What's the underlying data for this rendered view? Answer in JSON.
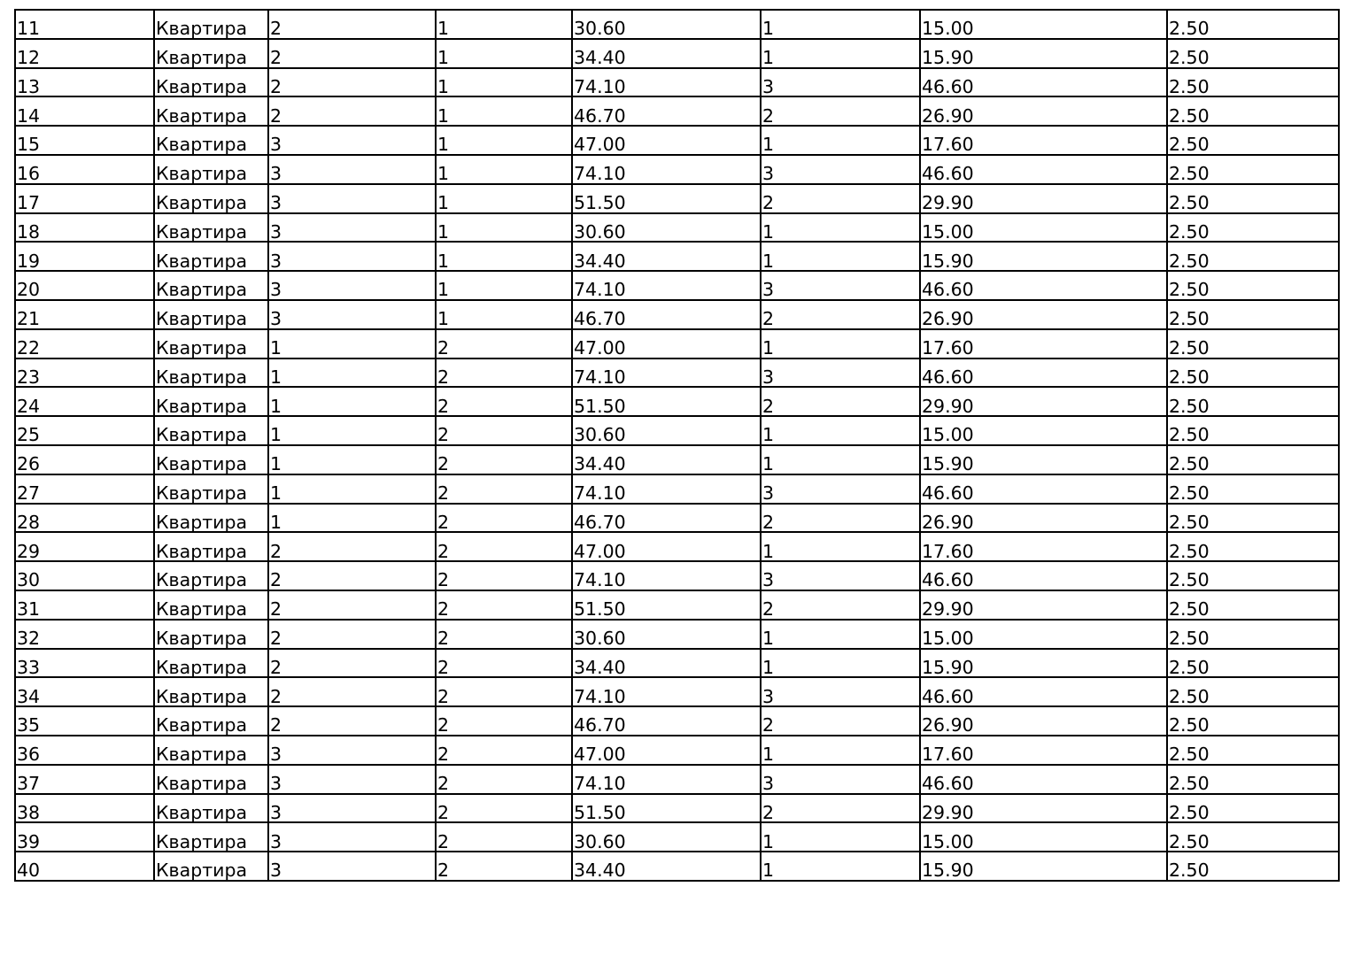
{
  "table": {
    "rows": [
      [
        "11",
        "Квартира",
        "2",
        "1",
        "30.60",
        "1",
        "15.00",
        "2.50"
      ],
      [
        "12",
        "Квартира",
        "2",
        "1",
        "34.40",
        "1",
        "15.90",
        "2.50"
      ],
      [
        "13",
        "Квартира",
        "2",
        "1",
        "74.10",
        "3",
        "46.60",
        "2.50"
      ],
      [
        "14",
        "Квартира",
        "2",
        "1",
        "46.70",
        "2",
        "26.90",
        "2.50"
      ],
      [
        "15",
        "Квартира",
        "3",
        "1",
        "47.00",
        "1",
        "17.60",
        "2.50"
      ],
      [
        "16",
        "Квартира",
        "3",
        "1",
        "74.10",
        "3",
        "46.60",
        "2.50"
      ],
      [
        "17",
        "Квартира",
        "3",
        "1",
        "51.50",
        "2",
        "29.90",
        "2.50"
      ],
      [
        "18",
        "Квартира",
        "3",
        "1",
        "30.60",
        "1",
        "15.00",
        "2.50"
      ],
      [
        "19",
        "Квартира",
        "3",
        "1",
        "34.40",
        "1",
        "15.90",
        "2.50"
      ],
      [
        "20",
        "Квартира",
        "3",
        "1",
        "74.10",
        "3",
        "46.60",
        "2.50"
      ],
      [
        "21",
        "Квартира",
        "3",
        "1",
        "46.70",
        "2",
        "26.90",
        "2.50"
      ],
      [
        "22",
        "Квартира",
        "1",
        "2",
        "47.00",
        "1",
        "17.60",
        "2.50"
      ],
      [
        "23",
        "Квартира",
        "1",
        "2",
        "74.10",
        "3",
        "46.60",
        "2.50"
      ],
      [
        "24",
        "Квартира",
        "1",
        "2",
        "51.50",
        "2",
        "29.90",
        "2.50"
      ],
      [
        "25",
        "Квартира",
        "1",
        "2",
        "30.60",
        "1",
        "15.00",
        "2.50"
      ],
      [
        "26",
        "Квартира",
        "1",
        "2",
        "34.40",
        "1",
        "15.90",
        "2.50"
      ],
      [
        "27",
        "Квартира",
        "1",
        "2",
        "74.10",
        "3",
        "46.60",
        "2.50"
      ],
      [
        "28",
        "Квартира",
        "1",
        "2",
        "46.70",
        "2",
        "26.90",
        "2.50"
      ],
      [
        "29",
        "Квартира",
        "2",
        "2",
        "47.00",
        "1",
        "17.60",
        "2.50"
      ],
      [
        "30",
        "Квартира",
        "2",
        "2",
        "74.10",
        "3",
        "46.60",
        "2.50"
      ],
      [
        "31",
        "Квартира",
        "2",
        "2",
        "51.50",
        "2",
        "29.90",
        "2.50"
      ],
      [
        "32",
        "Квартира",
        "2",
        "2",
        "30.60",
        "1",
        "15.00",
        "2.50"
      ],
      [
        "33",
        "Квартира",
        "2",
        "2",
        "34.40",
        "1",
        "15.90",
        "2.50"
      ],
      [
        "34",
        "Квартира",
        "2",
        "2",
        "74.10",
        "3",
        "46.60",
        "2.50"
      ],
      [
        "35",
        "Квартира",
        "2",
        "2",
        "46.70",
        "2",
        "26.90",
        "2.50"
      ],
      [
        "36",
        "Квартира",
        "3",
        "2",
        "47.00",
        "1",
        "17.60",
        "2.50"
      ],
      [
        "37",
        "Квартира",
        "3",
        "2",
        "74.10",
        "3",
        "46.60",
        "2.50"
      ],
      [
        "38",
        "Квартира",
        "3",
        "2",
        "51.50",
        "2",
        "29.90",
        "2.50"
      ],
      [
        "39",
        "Квартира",
        "3",
        "2",
        "30.60",
        "1",
        "15.00",
        "2.50"
      ],
      [
        "40",
        "Квартира",
        "3",
        "2",
        "34.40",
        "1",
        "15.90",
        "2.50"
      ]
    ]
  }
}
